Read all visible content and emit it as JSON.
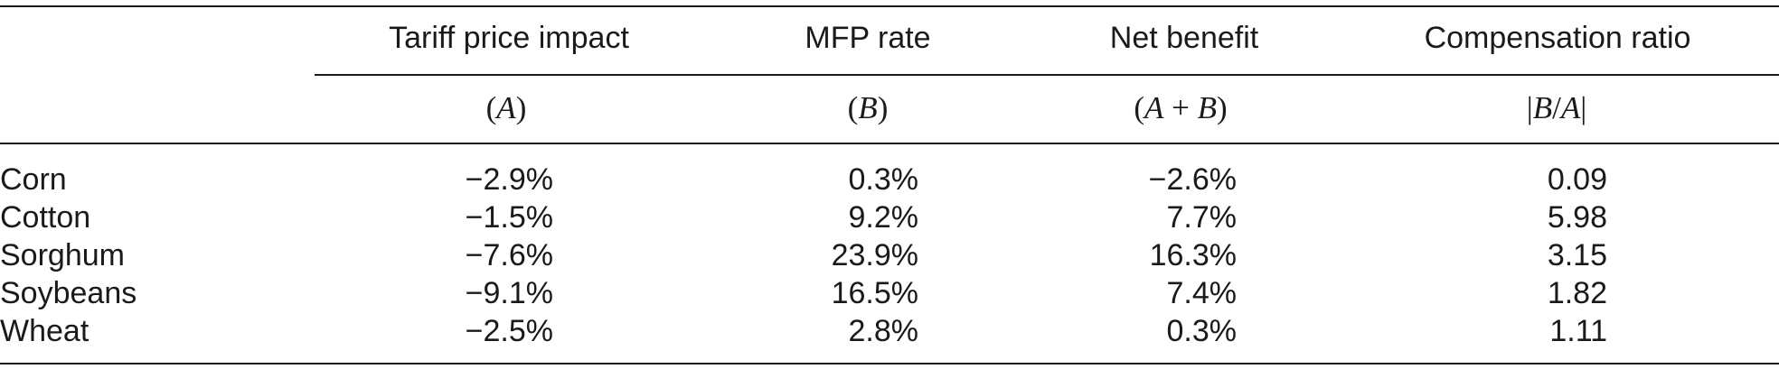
{
  "table": {
    "columns": [
      {
        "header": "Tariff price impact",
        "symbol": "(A)"
      },
      {
        "header": "MFP rate",
        "symbol": "(B)"
      },
      {
        "header": "Net benefit",
        "symbol": "(A + B)"
      },
      {
        "header": "Compensation ratio",
        "symbol": "|B/A|"
      }
    ],
    "rows": [
      {
        "label": "Corn",
        "values": [
          "−2.9%",
          "0.3%",
          "−2.6%",
          "0.09"
        ]
      },
      {
        "label": "Cotton",
        "values": [
          "−1.5%",
          "9.2%",
          "7.7%",
          "5.98"
        ]
      },
      {
        "label": "Sorghum",
        "values": [
          "−7.6%",
          "23.9%",
          "16.3%",
          "3.15"
        ]
      },
      {
        "label": "Soybeans",
        "values": [
          "−9.1%",
          "16.5%",
          "7.4%",
          "1.82"
        ]
      },
      {
        "label": "Wheat",
        "values": [
          "−2.5%",
          "2.8%",
          "0.3%",
          "1.11"
        ]
      }
    ]
  }
}
